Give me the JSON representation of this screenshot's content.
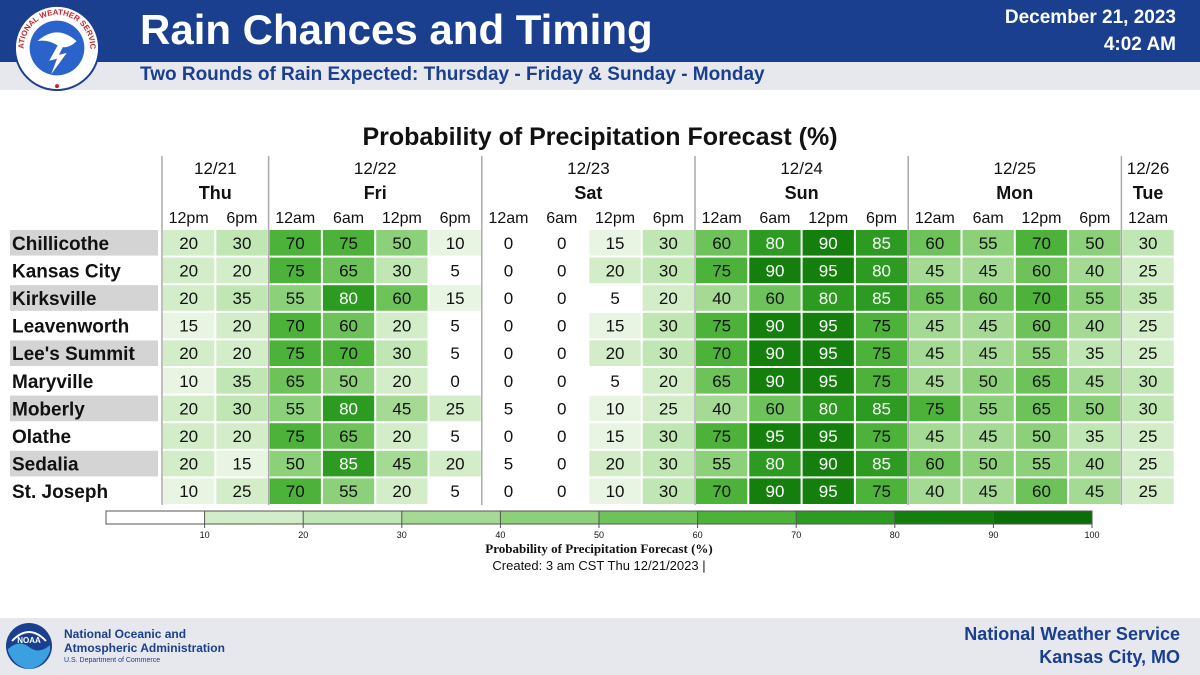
{
  "header": {
    "title": "Rain Chances and Timing",
    "subtitle": "Two Rounds of Rain Expected: Thursday - Friday & Sunday - Monday",
    "date": "December 21, 2023",
    "time": "4:02 AM",
    "logo_text": "NATIONAL WEATHER SERVICE"
  },
  "colors": {
    "header_bg": "#1a3f8f",
    "band_bg": "#e6e8ee",
    "scale": [
      "#ffffff",
      "#e8f5e2",
      "#d3edc9",
      "#c0e6b3",
      "#a5da94",
      "#8cd07a",
      "#6ec25a",
      "#4cb23a",
      "#2d9a22",
      "#147f0d",
      "#0c6e08"
    ]
  },
  "chart_data": {
    "type": "heatmap",
    "title": "Probability of Precipitation Forecast (%)",
    "days": [
      {
        "date": "12/21",
        "day": "Thu",
        "times": [
          "12pm",
          "6pm"
        ]
      },
      {
        "date": "12/22",
        "day": "Fri",
        "times": [
          "12am",
          "6am",
          "12pm",
          "6pm"
        ]
      },
      {
        "date": "12/23",
        "day": "Sat",
        "times": [
          "12am",
          "6am",
          "12pm",
          "6pm"
        ]
      },
      {
        "date": "12/24",
        "day": "Sun",
        "times": [
          "12am",
          "6am",
          "12pm",
          "6pm"
        ]
      },
      {
        "date": "12/25",
        "day": "Mon",
        "times": [
          "12am",
          "6am",
          "12pm",
          "6pm"
        ]
      },
      {
        "date": "12/26",
        "day": "Tue",
        "times": [
          "12am"
        ]
      }
    ],
    "rows": [
      {
        "location": "Chillicothe",
        "values": [
          20,
          30,
          70,
          75,
          50,
          10,
          0,
          0,
          15,
          30,
          60,
          80,
          90,
          85,
          60,
          55,
          70,
          50,
          30
        ]
      },
      {
        "location": "Kansas City",
        "values": [
          20,
          20,
          75,
          65,
          30,
          5,
          0,
          0,
          20,
          30,
          75,
          90,
          95,
          80,
          45,
          45,
          60,
          40,
          25
        ]
      },
      {
        "location": "Kirksville",
        "values": [
          20,
          35,
          55,
          80,
          60,
          15,
          0,
          0,
          5,
          20,
          40,
          60,
          80,
          85,
          65,
          60,
          70,
          55,
          35
        ]
      },
      {
        "location": "Leavenworth",
        "values": [
          15,
          20,
          70,
          60,
          20,
          5,
          0,
          0,
          15,
          30,
          75,
          90,
          95,
          75,
          45,
          45,
          60,
          40,
          25
        ]
      },
      {
        "location": "Lee's Summit",
        "values": [
          20,
          20,
          75,
          70,
          30,
          5,
          0,
          0,
          20,
          30,
          70,
          90,
          95,
          75,
          45,
          45,
          55,
          35,
          25
        ]
      },
      {
        "location": "Maryville",
        "values": [
          10,
          35,
          65,
          50,
          20,
          0,
          0,
          0,
          5,
          20,
          65,
          90,
          95,
          75,
          45,
          50,
          65,
          45,
          30
        ]
      },
      {
        "location": "Moberly",
        "values": [
          20,
          30,
          55,
          80,
          45,
          25,
          5,
          0,
          10,
          25,
          40,
          60,
          80,
          85,
          75,
          55,
          65,
          50,
          30
        ]
      },
      {
        "location": "Olathe",
        "values": [
          20,
          20,
          75,
          65,
          20,
          5,
          0,
          0,
          15,
          30,
          75,
          95,
          95,
          75,
          45,
          45,
          50,
          35,
          25
        ]
      },
      {
        "location": "Sedalia",
        "values": [
          20,
          15,
          50,
          85,
          45,
          20,
          5,
          0,
          20,
          30,
          55,
          80,
          90,
          85,
          60,
          50,
          55,
          40,
          25
        ]
      },
      {
        "location": "St. Joseph",
        "values": [
          10,
          25,
          70,
          55,
          20,
          5,
          0,
          0,
          10,
          30,
          70,
          90,
          95,
          75,
          40,
          45,
          60,
          45,
          25
        ]
      }
    ],
    "colorbar": {
      "ticks": [
        10,
        20,
        30,
        40,
        50,
        60,
        70,
        80,
        90,
        100
      ],
      "label": "Probability of Precipitation Forecast (%)",
      "range": [
        0,
        100
      ]
    },
    "created": "Created: 3 am CST Thu 12/21/2023  |"
  },
  "footer": {
    "noaa_line1": "National Oceanic and",
    "noaa_line2": "Atmospheric Administration",
    "noaa_line3": "U.S. Department of Commerce",
    "noaa_logo_text": "NOAA",
    "office_line1": "National Weather Service",
    "office_line2": "Kansas City, MO"
  }
}
